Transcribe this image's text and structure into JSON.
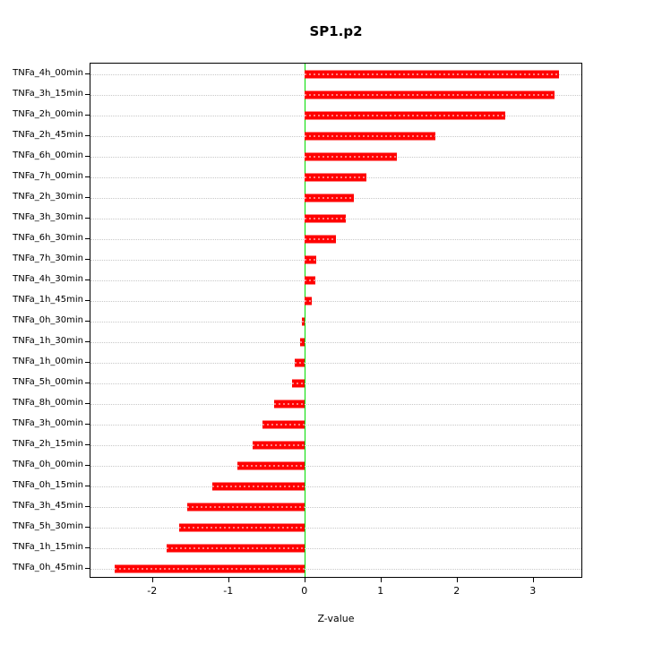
{
  "chart_data": {
    "type": "bar",
    "orientation": "horizontal",
    "title": "SP1.p2",
    "xlabel": "Z-value",
    "ylabel": "",
    "xlim": [
      -2.82,
      3.65
    ],
    "xticks": [
      -2,
      -1,
      0,
      1,
      2,
      3
    ],
    "grid": true,
    "legend": false,
    "bar_color": "#ff0000",
    "zero_line_color": "#00dd00",
    "categories": [
      "TNFa_4h_00min",
      "TNFa_3h_15min",
      "TNFa_2h_00min",
      "TNFa_2h_45min",
      "TNFa_6h_00min",
      "TNFa_7h_00min",
      "TNFa_2h_30min",
      "TNFa_3h_30min",
      "TNFa_6h_30min",
      "TNFa_7h_30min",
      "TNFa_4h_30min",
      "TNFa_1h_45min",
      "TNFa_0h_30min",
      "TNFa_1h_30min",
      "TNFa_1h_00min",
      "TNFa_5h_00min",
      "TNFa_8h_00min",
      "TNFa_3h_00min",
      "TNFa_2h_15min",
      "TNFa_0h_00min",
      "TNFa_0h_15min",
      "TNFa_3h_45min",
      "TNFa_5h_30min",
      "TNFa_1h_15min",
      "TNFa_0h_45min"
    ],
    "values": [
      3.35,
      3.3,
      2.65,
      1.72,
      1.22,
      0.82,
      0.65,
      0.55,
      0.42,
      0.15,
      0.14,
      0.1,
      -0.03,
      -0.06,
      -0.13,
      -0.16,
      -0.4,
      -0.55,
      -0.68,
      -0.88,
      -1.22,
      -1.55,
      -1.65,
      -1.82,
      -2.5
    ]
  }
}
